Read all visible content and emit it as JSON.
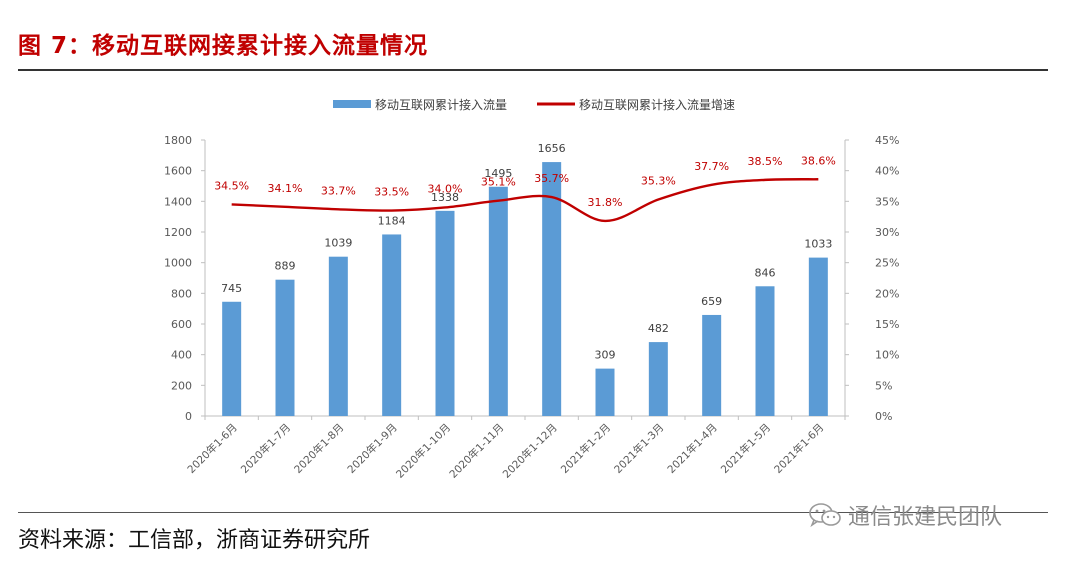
{
  "figure": {
    "title": "图 7：移动互联网接累计接入流量情况",
    "source": "资料来源：工信部，浙商证券研究所",
    "watermark_text": "通信张建民团队",
    "watermark_icon": "wechat-icon"
  },
  "colors": {
    "title": "#c00000",
    "bar": "#5b9bd5",
    "line": "#c00000",
    "axis_text": "#595959",
    "label_text": "#404040"
  },
  "chart_data": {
    "type": "bar",
    "title": "",
    "categories": [
      "2020年1-6月",
      "2020年1-7月",
      "2020年1-8月",
      "2020年1-9月",
      "2020年1-10月",
      "2020年1-11月",
      "2020年1-12月",
      "2021年1-2月",
      "2021年1-3月",
      "2021年1-4月",
      "2021年1-5月",
      "2021年1-6月"
    ],
    "series": [
      {
        "name": "移动互联网累计接入流量",
        "type": "bar",
        "axis": "left",
        "values": [
          745,
          889,
          1039,
          1184,
          1338,
          1495,
          1656,
          309,
          482,
          659,
          846,
          1033
        ],
        "labels": [
          "745",
          "889",
          "1039",
          "1184",
          "1338",
          "1495",
          "1656",
          "309",
          "482",
          "659",
          "846",
          "1033"
        ]
      },
      {
        "name": "移动互联网累计接入流量增速",
        "type": "line",
        "axis": "right",
        "values": [
          34.5,
          34.1,
          33.7,
          33.5,
          34.0,
          35.1,
          35.7,
          31.8,
          35.3,
          37.7,
          38.5,
          38.6
        ],
        "labels": [
          "34.5%",
          "34.1%",
          "33.7%",
          "33.5%",
          "34.0%",
          "35.1%",
          "35.7%",
          "31.8%",
          "35.3%",
          "37.7%",
          "38.5%",
          "38.6%"
        ]
      }
    ],
    "y_left": {
      "min": 0,
      "max": 1800,
      "ticks": [
        "0",
        "200",
        "400",
        "600",
        "800",
        "1000",
        "1200",
        "1400",
        "1600",
        "1800"
      ]
    },
    "y_right": {
      "min": 0,
      "max": 45,
      "ticks": [
        "0%",
        "5%",
        "10%",
        "15%",
        "20%",
        "25%",
        "30%",
        "35%",
        "40%",
        "45%"
      ]
    },
    "legend_position": "top",
    "grid": false
  }
}
